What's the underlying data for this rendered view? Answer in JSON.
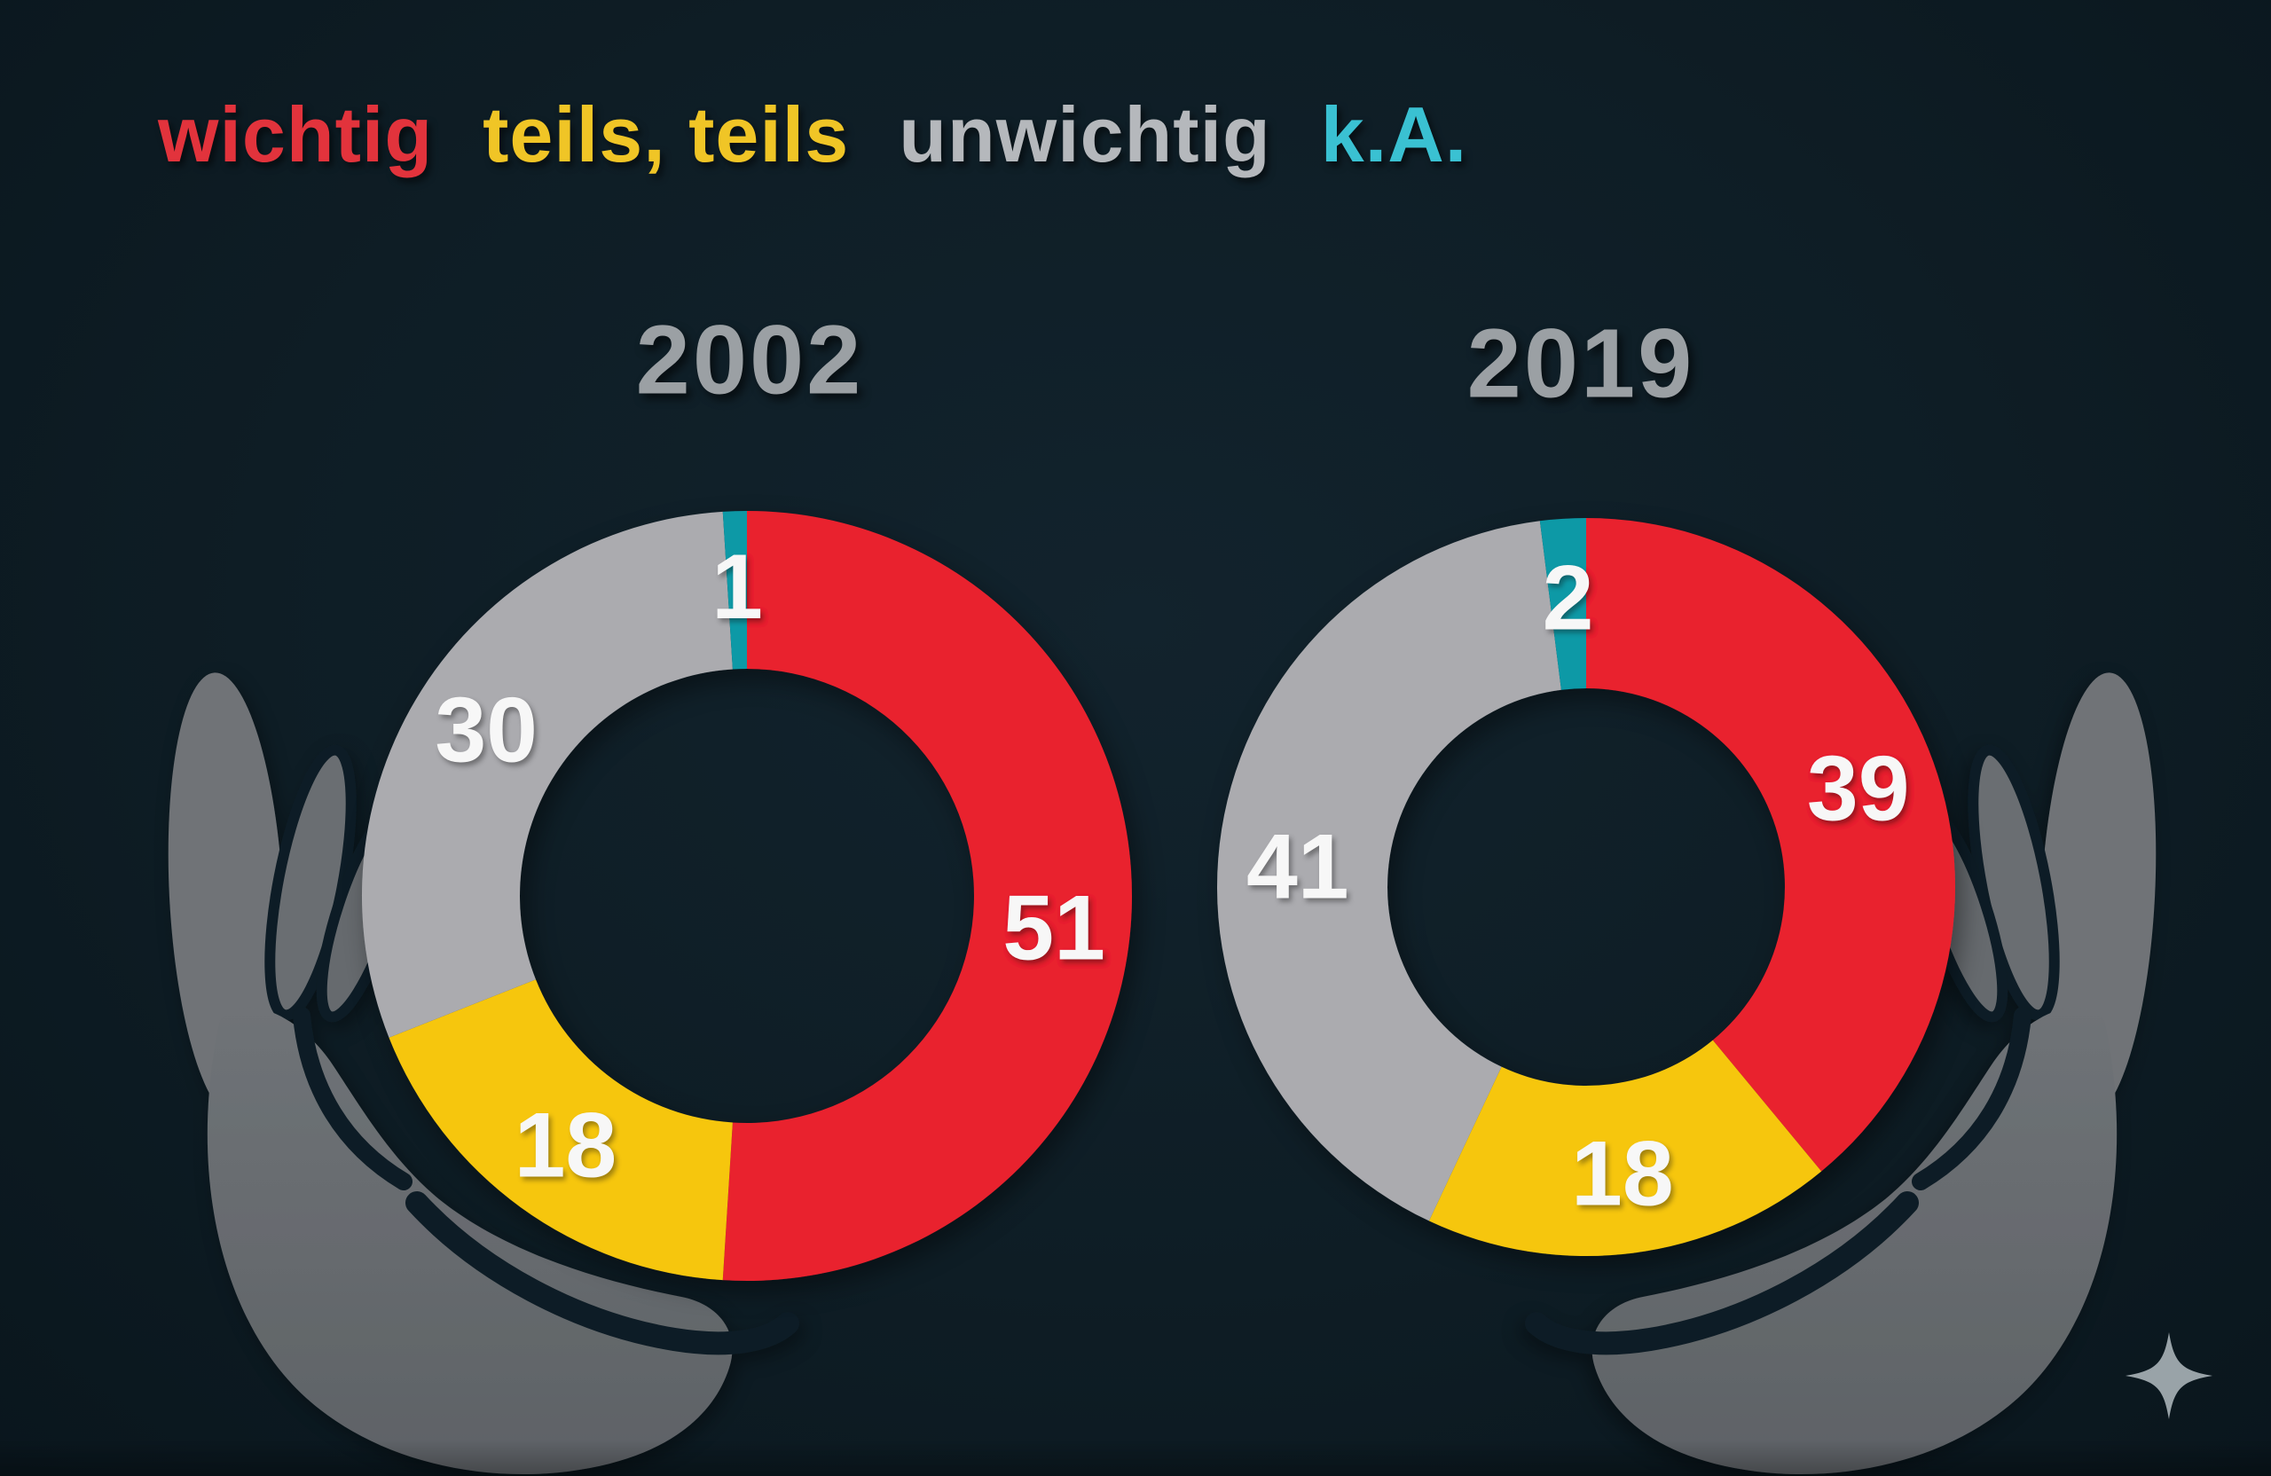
{
  "legend": {
    "items": [
      {
        "label": "wichtig",
        "color": "#e2333c"
      },
      {
        "label": "teils, teils",
        "color": "#f0c526"
      },
      {
        "label": "unwichtig",
        "color": "#b5b8bc"
      },
      {
        "label": "k.A.",
        "color": "#3ac1d2"
      }
    ]
  },
  "chart_data": [
    {
      "type": "pie",
      "donut": true,
      "title": "2002",
      "unit": "percent",
      "direction": "clockwise",
      "start_angle_deg": 0,
      "categories": [
        "wichtig",
        "teils, teils",
        "unwichtig",
        "k.A."
      ],
      "values": [
        51,
        18,
        30,
        1
      ],
      "colors": [
        "#e9202e",
        "#f6c60e",
        "#ababaf",
        "#0f99a6"
      ],
      "label_color": "#f7f7f7",
      "legend_position": "top"
    },
    {
      "type": "pie",
      "donut": true,
      "title": "2019",
      "unit": "percent",
      "direction": "clockwise",
      "start_angle_deg": 0,
      "categories": [
        "wichtig",
        "teils, teils",
        "unwichtig",
        "k.A."
      ],
      "values": [
        39,
        18,
        41,
        2
      ],
      "colors": [
        "#e9202e",
        "#f6c60e",
        "#ababaf",
        "#0f99a6"
      ],
      "label_color": "#f7f7f7",
      "legend_position": "top"
    }
  ],
  "decor": {
    "sparkle_icon": "four-point-star",
    "sparkle_color": "#99a3a8",
    "hands_color": "#6f7377",
    "background_color": "#0e1d25"
  }
}
